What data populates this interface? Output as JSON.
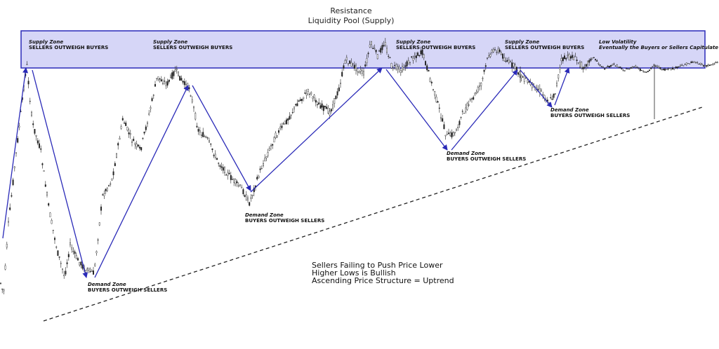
{
  "chart_data": {
    "type": "annotated-price-chart",
    "title": "Resistance",
    "subtitle": "Liquidity Pool (Supply)",
    "notes": [
      "Sellers Failing to Push Price Lower",
      "Higher Lows is Bullish",
      "Ascending Price Structure = Uptrend"
    ],
    "supply_zones": [
      {
        "title": "Supply Zone",
        "label": "SELLERS OUTWEIGH BUYERS"
      },
      {
        "title": "Supply Zone",
        "label": "SELLERS OUTWEIGH BUYERS"
      },
      {
        "title": "Supply Zone",
        "label": "SELLERS OUTWEIGH BUYERS"
      },
      {
        "title": "Supply Zone",
        "label": "SELLERS OUTWEIGH BUYERS"
      },
      {
        "title": "Low Volatility",
        "label": "Eventually the Buyers or Sellers Capitulate"
      }
    ],
    "demand_zones": [
      {
        "title": "Demand Zone",
        "label": "BUYERS OUTWEIGH SELLERS"
      },
      {
        "title": "Demand Zone",
        "label": "BUYERS OUTWEIGH SELLERS"
      },
      {
        "title": "Demand Zone",
        "label": "BUYERS OUTWEIGH SELLERS"
      },
      {
        "title": "Demand Zone",
        "label": "BUYERS OUTWEIGH SELLERS"
      }
    ],
    "colors": {
      "zone_fill": "#d6d6f7",
      "zone_stroke": "#2a2ab8",
      "arrow": "#2a2ab8",
      "candles": "#222222",
      "trendline": "#222222"
    }
  }
}
